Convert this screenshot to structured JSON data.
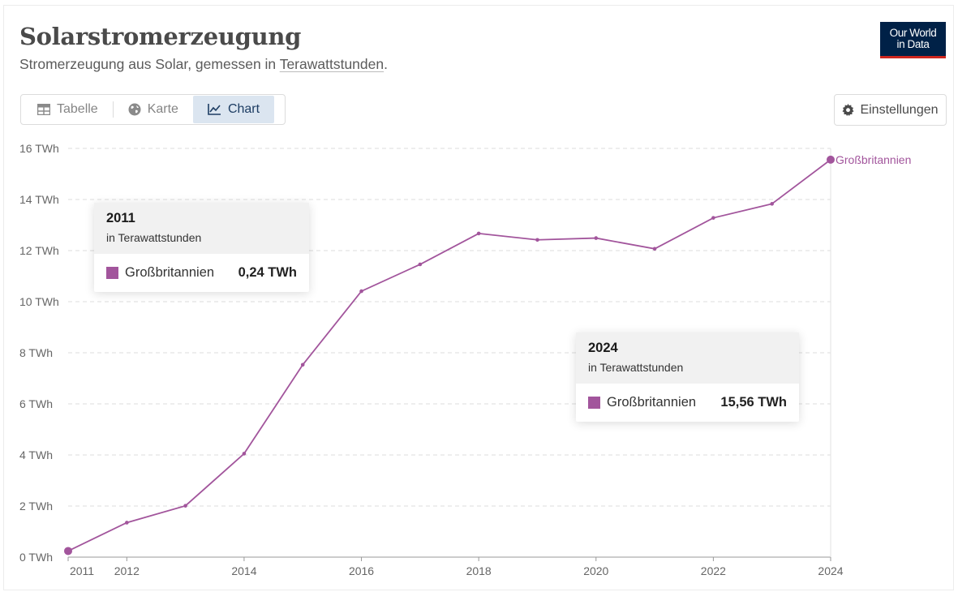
{
  "header": {
    "title": "Solarstromerzeugung",
    "subtitle_prefix": "Stromerzeugung aus Solar, gemessen in ",
    "subtitle_link": "Terawattstunden",
    "subtitle_suffix": ".",
    "logo_line1": "Our World",
    "logo_line2": "in Data"
  },
  "tabs": [
    {
      "label": "Tabelle",
      "icon": "table-icon"
    },
    {
      "label": "Karte",
      "icon": "globe-icon"
    },
    {
      "label": "Chart",
      "icon": "line-chart-icon",
      "active": true
    }
  ],
  "settings_label": "Einstellungen",
  "colors": {
    "series": "#a2559c",
    "grid": "#dddddd",
    "accent": "#dbe5f0"
  },
  "tooltips": [
    {
      "year": "2011",
      "unit": "in Terawattstunden",
      "series": "Großbritannien",
      "value": "0,24 TWh"
    },
    {
      "year": "2024",
      "unit": "in Terawattstunden",
      "series": "Großbritannien",
      "value": "15,56 TWh"
    }
  ],
  "chart_data": {
    "type": "line",
    "title": "Solarstromerzeugung",
    "ylim": [
      0,
      16
    ],
    "xlim": [
      2011,
      2024
    ],
    "y_ticks": [
      0,
      2,
      4,
      6,
      8,
      10,
      12,
      14,
      16
    ],
    "y_tick_labels": [
      "0 TWh",
      "2 TWh",
      "4 TWh",
      "6 TWh",
      "8 TWh",
      "10 TWh",
      "12 TWh",
      "14 TWh",
      "16 TWh"
    ],
    "x_ticks": [
      2011,
      2012,
      2014,
      2016,
      2018,
      2020,
      2022,
      2024
    ],
    "x_tick_labels": [
      "2011",
      "2012",
      "2014",
      "2016",
      "2018",
      "2020",
      "2022",
      "2024"
    ],
    "grid": "horizontal dashed",
    "series": [
      {
        "name": "Großbritannien",
        "x": [
          2011,
          2012,
          2013,
          2014,
          2015,
          2016,
          2017,
          2018,
          2019,
          2020,
          2021,
          2022,
          2023,
          2024
        ],
        "values": [
          0.24,
          1.35,
          2.01,
          4.05,
          7.53,
          10.41,
          11.46,
          12.67,
          12.42,
          12.49,
          12.07,
          13.28,
          13.83,
          15.56
        ]
      }
    ]
  }
}
